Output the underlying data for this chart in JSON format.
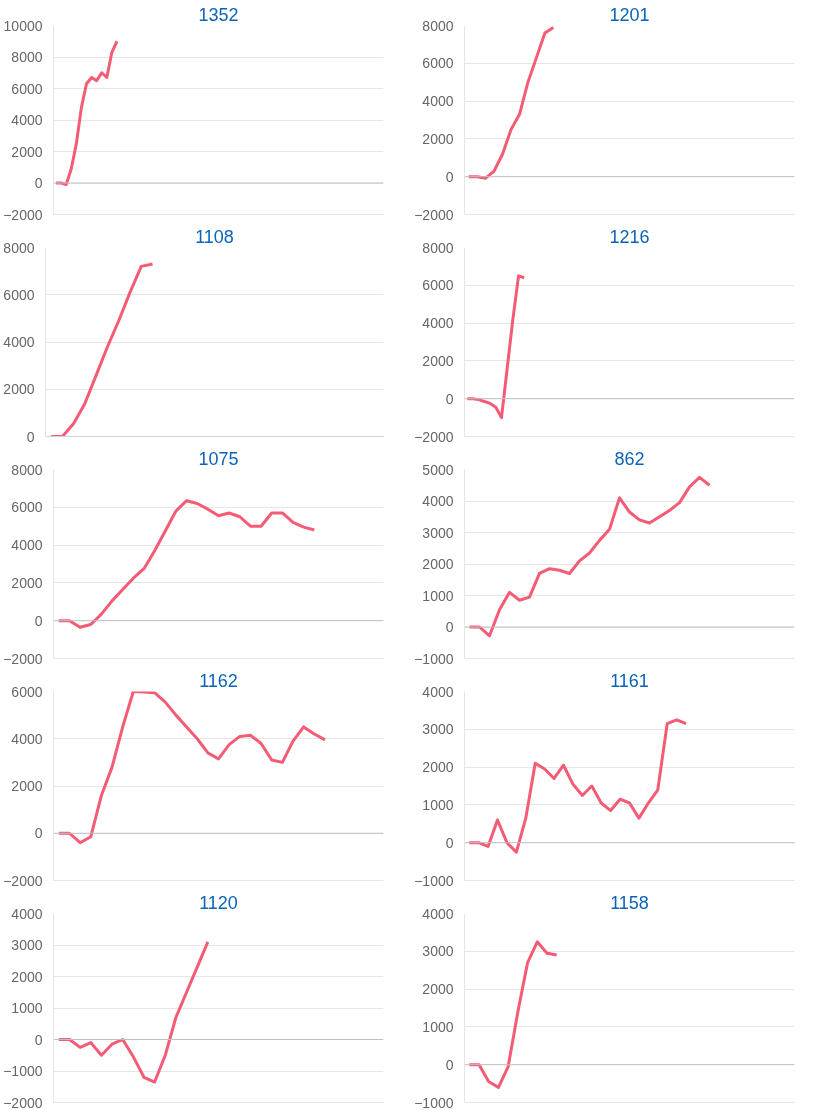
{
  "chart_data": [
    {
      "type": "line",
      "title": "1352",
      "color": "#f45b75",
      "ylim": [
        -2000,
        10000
      ],
      "yticks": [
        -2000,
        0,
        2000,
        4000,
        6000,
        8000,
        10000
      ],
      "grid": "y",
      "tick_labels": "y",
      "marker": "none",
      "line_style": "solid",
      "categories": [
        null,
        null,
        null,
        null,
        null,
        null,
        null,
        null,
        null,
        null,
        null,
        null,
        null,
        null,
        null,
        null,
        null,
        null,
        null,
        null,
        null,
        null,
        null,
        null,
        null,
        null,
        null,
        null,
        null,
        null,
        null,
        null,
        null,
        null,
        null,
        null,
        null,
        null,
        null,
        null,
        null,
        null,
        null,
        null,
        null,
        null,
        null,
        null,
        null,
        null,
        null,
        null,
        null,
        null,
        null,
        null,
        null,
        null,
        null,
        null,
        null,
        null,
        null,
        null,
        null
      ],
      "values": [
        0,
        0,
        -100,
        900,
        2500,
        4800,
        6300,
        6700,
        6500,
        7000,
        6700,
        8300,
        9000,
        null,
        null,
        null,
        null,
        null,
        null,
        null,
        null,
        null,
        null,
        null,
        null,
        null,
        null,
        null,
        null,
        null,
        null,
        null,
        null,
        null,
        null,
        null,
        null,
        null,
        null,
        null,
        null,
        null,
        null,
        null,
        null,
        null,
        null,
        null,
        null,
        null,
        null,
        null,
        null,
        null,
        null,
        null,
        null,
        null,
        null,
        null,
        null,
        null,
        null,
        null,
        null
      ]
    },
    {
      "type": "line",
      "title": "1201",
      "color": "#f45b75",
      "ylim": [
        -2000,
        8000
      ],
      "yticks": [
        -2000,
        0,
        2000,
        4000,
        6000,
        8000
      ],
      "grid": "y",
      "tick_labels": "y",
      "marker": "none",
      "line_style": "solid",
      "categories": [
        null,
        null,
        null,
        null,
        null,
        null,
        null,
        null,
        null,
        null,
        null,
        null,
        null,
        null,
        null,
        null,
        null,
        null,
        null,
        null,
        null,
        null,
        null,
        null,
        null,
        null,
        null,
        null,
        null,
        null,
        null,
        null,
        null,
        null,
        null,
        null,
        null,
        null,
        null
      ],
      "values": [
        0,
        0,
        -80,
        300,
        1200,
        2500,
        3300,
        5000,
        6300,
        7600,
        7900,
        null,
        null,
        null,
        null,
        null,
        null,
        null,
        null,
        null,
        null,
        null,
        null,
        null,
        null,
        null,
        null,
        null,
        null,
        null,
        null,
        null,
        null,
        null,
        null,
        null,
        null,
        null,
        null
      ]
    },
    {
      "type": "line",
      "title": "1108",
      "color": "#f45b75",
      "ylim": [
        0,
        8000
      ],
      "yticks": [
        0,
        2000,
        4000,
        6000,
        8000
      ],
      "grid": "y",
      "tick_labels": "y",
      "marker": "none",
      "line_style": "solid",
      "categories": [
        null,
        null,
        null,
        null,
        null,
        null,
        null,
        null,
        null,
        null,
        null,
        null,
        null,
        null,
        null,
        null,
        null,
        null,
        null,
        null,
        null,
        null,
        null,
        null,
        null,
        null,
        null,
        null,
        null,
        null
      ],
      "values": [
        0,
        0,
        550,
        1400,
        2600,
        3800,
        4900,
        6100,
        7200,
        7300,
        null,
        null,
        null,
        null,
        null,
        null,
        null,
        null,
        null,
        null,
        null,
        null,
        null,
        null,
        null,
        null,
        null,
        null,
        null,
        null
      ]
    },
    {
      "type": "line",
      "title": "1216",
      "color": "#f45b75",
      "ylim": [
        -2000,
        8000
      ],
      "yticks": [
        -2000,
        0,
        2000,
        4000,
        6000,
        8000
      ],
      "grid": "y",
      "tick_labels": "y",
      "marker": "none",
      "line_style": "solid",
      "categories": [
        null,
        null,
        null,
        null,
        null,
        null,
        null,
        null,
        null,
        null,
        null,
        null,
        null,
        null,
        null,
        null,
        null,
        null,
        null,
        null,
        null,
        null,
        null,
        null,
        null,
        null,
        null,
        null,
        null,
        null,
        null,
        null,
        null,
        null,
        null,
        null,
        null,
        null,
        null,
        null,
        null,
        null,
        null,
        null,
        null,
        null,
        null,
        null,
        null,
        null,
        null,
        null,
        null,
        null,
        null,
        null,
        null,
        null
      ],
      "values": [
        0,
        0,
        -50,
        -150,
        -250,
        -450,
        -1000,
        1600,
        4200,
        6500,
        6400,
        null,
        null,
        null,
        null,
        null,
        null,
        null,
        null,
        null,
        null,
        null,
        null,
        null,
        null,
        null,
        null,
        null,
        null,
        null,
        null,
        null,
        null,
        null,
        null,
        null,
        null,
        null,
        null,
        null,
        null,
        null,
        null,
        null,
        null,
        null,
        null,
        null,
        null,
        null,
        null,
        null,
        null,
        null,
        null,
        null,
        null,
        null
      ]
    },
    {
      "type": "line",
      "title": "1075",
      "color": "#f45b75",
      "ylim": [
        -2000,
        8000
      ],
      "yticks": [
        -2000,
        0,
        2000,
        4000,
        6000,
        8000
      ],
      "grid": "y",
      "tick_labels": "y",
      "marker": "none",
      "line_style": "solid",
      "categories": [
        null,
        null,
        null,
        null,
        null,
        null,
        null,
        null,
        null,
        null,
        null,
        null,
        null,
        null,
        null,
        null,
        null,
        null,
        null,
        null,
        null,
        null,
        null,
        null,
        null,
        null,
        null,
        null,
        null,
        null,
        null
      ],
      "values": [
        0,
        0,
        -350,
        -200,
        350,
        1050,
        1650,
        2250,
        2750,
        3700,
        4750,
        5800,
        6350,
        6200,
        5900,
        5550,
        5700,
        5500,
        5000,
        5000,
        5700,
        5700,
        5200,
        4950,
        4800,
        null,
        null,
        null,
        null,
        null,
        null
      ]
    },
    {
      "type": "line",
      "title": "862",
      "color": "#f45b75",
      "ylim": [
        -1000,
        5000
      ],
      "yticks": [
        -1000,
        0,
        1000,
        2000,
        3000,
        4000,
        5000
      ],
      "grid": "y",
      "tick_labels": "y",
      "marker": "none",
      "line_style": "solid",
      "categories": [
        null,
        null,
        null,
        null,
        null,
        null,
        null,
        null,
        null,
        null,
        null,
        null,
        null,
        null,
        null,
        null,
        null,
        null,
        null,
        null,
        null,
        null,
        null,
        null,
        null,
        null,
        null,
        null,
        null,
        null,
        null,
        null,
        null
      ],
      "values": [
        0,
        0,
        -280,
        550,
        1100,
        850,
        950,
        1700,
        1850,
        1800,
        1700,
        2100,
        2350,
        2750,
        3100,
        4100,
        3650,
        3400,
        3300,
        3500,
        3700,
        3950,
        4450,
        4750,
        4500,
        null,
        null,
        null,
        null,
        null,
        null,
        null,
        null
      ]
    },
    {
      "type": "line",
      "title": "1162",
      "color": "#f45b75",
      "ylim": [
        -2000,
        6000
      ],
      "yticks": [
        -2000,
        0,
        2000,
        4000,
        6000
      ],
      "grid": "y",
      "tick_labels": "y",
      "marker": "none",
      "line_style": "solid",
      "categories": [
        null,
        null,
        null,
        null,
        null,
        null,
        null,
        null,
        null,
        null,
        null,
        null,
        null,
        null,
        null,
        null,
        null,
        null,
        null,
        null,
        null,
        null,
        null,
        null,
        null,
        null,
        null,
        null,
        null,
        null,
        null
      ],
      "values": [
        0,
        0,
        -400,
        -150,
        1600,
        2800,
        4500,
        6000,
        5980,
        5950,
        5550,
        5000,
        4500,
        4000,
        3400,
        3150,
        3750,
        4100,
        4150,
        3800,
        3100,
        3000,
        3900,
        4500,
        4200,
        3950,
        null,
        null,
        null,
        null,
        null
      ]
    },
    {
      "type": "line",
      "title": "1161",
      "color": "#f45b75",
      "ylim": [
        -1000,
        4000
      ],
      "yticks": [
        -1000,
        0,
        1000,
        2000,
        3000,
        4000
      ],
      "grid": "y",
      "tick_labels": "y",
      "marker": "none",
      "line_style": "solid",
      "categories": [
        null,
        null,
        null,
        null,
        null,
        null,
        null,
        null,
        null,
        null,
        null,
        null,
        null,
        null,
        null,
        null,
        null,
        null,
        null,
        null,
        null,
        null,
        null,
        null,
        null,
        null,
        null,
        null,
        null,
        null,
        null,
        null,
        null,
        null,
        null
      ],
      "values": [
        0,
        0,
        -100,
        600,
        0,
        -250,
        650,
        2100,
        1950,
        1700,
        2050,
        1550,
        1250,
        1500,
        1050,
        850,
        1150,
        1050,
        650,
        1050,
        1400,
        3150,
        3250,
        3150,
        null,
        null,
        null,
        null,
        null,
        null,
        null,
        null,
        null,
        null,
        null
      ]
    },
    {
      "type": "line",
      "title": "1120",
      "color": "#f45b75",
      "ylim": [
        -2000,
        4000
      ],
      "yticks": [
        -2000,
        -1000,
        0,
        1000,
        2000,
        3000,
        4000
      ],
      "grid": "y",
      "tick_labels": "y",
      "marker": "none",
      "line_style": "solid",
      "categories": [
        null,
        null,
        null,
        null,
        null,
        null,
        null,
        null,
        null,
        null,
        null,
        null,
        null,
        null,
        null,
        null,
        null,
        null,
        null,
        null,
        null,
        null,
        null,
        null,
        null,
        null,
        null,
        null,
        null,
        null,
        null
      ],
      "values": [
        0,
        0,
        -250,
        -100,
        -500,
        -150,
        0,
        -550,
        -1200,
        -1350,
        -500,
        700,
        1500,
        2300,
        3100,
        null,
        null,
        null,
        null,
        null,
        null,
        null,
        null,
        null,
        null,
        null,
        null,
        null,
        null,
        null,
        null
      ]
    },
    {
      "type": "line",
      "title": "1158",
      "color": "#f45b75",
      "ylim": [
        -1000,
        4000
      ],
      "yticks": [
        -1000,
        0,
        1000,
        2000,
        3000,
        4000
      ],
      "grid": "y",
      "tick_labels": "y",
      "marker": "none",
      "line_style": "solid",
      "categories": [
        null,
        null,
        null,
        null,
        null,
        null,
        null,
        null,
        null,
        null,
        null,
        null,
        null,
        null,
        null,
        null,
        null,
        null,
        null,
        null,
        null,
        null,
        null,
        null,
        null,
        null,
        null,
        null,
        null,
        null,
        null,
        null,
        null,
        null
      ],
      "values": [
        0,
        0,
        -450,
        -600,
        -50,
        1400,
        2700,
        3250,
        2950,
        2900,
        null,
        null,
        null,
        null,
        null,
        null,
        null,
        null,
        null,
        null,
        null,
        null,
        null,
        null,
        null,
        null,
        null,
        null,
        null,
        null,
        null,
        null,
        null,
        null
      ]
    }
  ]
}
